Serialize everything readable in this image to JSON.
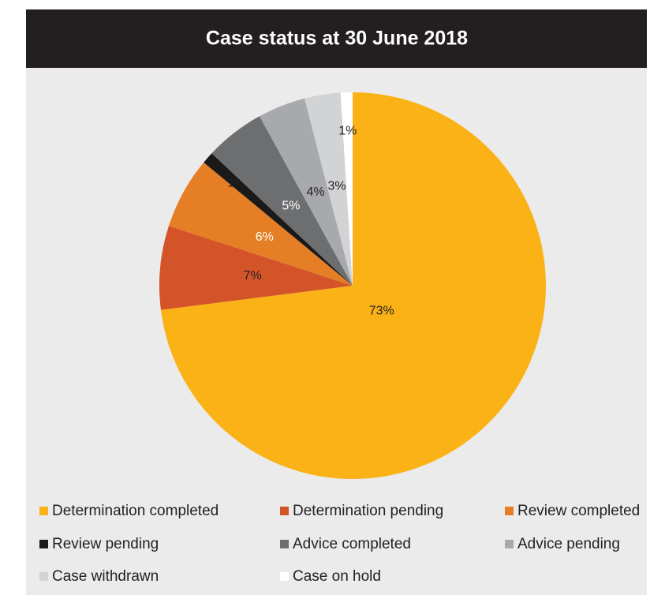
{
  "chart_data": {
    "type": "pie",
    "title": "Case status at 30 June 2018",
    "categories": [
      "Determination completed",
      "Determination pending",
      "Review completed",
      "Review pending",
      "Advice completed",
      "Advice pending",
      "Case withdrawn",
      "Case on hold"
    ],
    "values": [
      73,
      7,
      6,
      1,
      5,
      4,
      3,
      1
    ],
    "value_labels": [
      "73%",
      "7%",
      "6%",
      "1%",
      "5%",
      "4%",
      "3%",
      "1%"
    ],
    "colors": [
      "#fbb217",
      "#d4542a",
      "#e57e25",
      "#1a1a1a",
      "#6d6e70",
      "#a7a9ac",
      "#d1d3d4",
      "#ffffff"
    ],
    "legend": "bottom"
  }
}
